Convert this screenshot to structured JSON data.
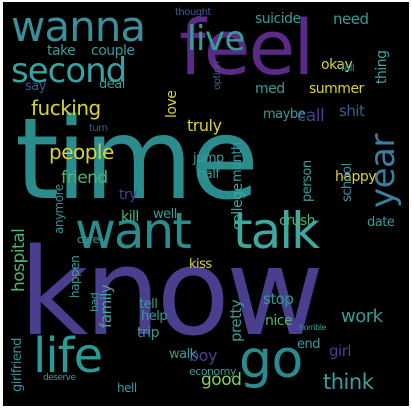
{
  "words": {
    "time": "time",
    "know": "know",
    "feel": "feel",
    "want": "want",
    "talk": "talk",
    "wanna": "wanna",
    "second": "second",
    "live": "live",
    "life": "life",
    "go": "go",
    "year": "year",
    "people": "people",
    "fucking": "fucking",
    "friend": "friend",
    "think": "think",
    "hospital": "hospital",
    "girlfriend": "girlfriend",
    "family": "family",
    "good": "good",
    "boy": "boy",
    "pretty": "pretty",
    "work": "work",
    "happy": "happy",
    "kill": "kill",
    "college": "college",
    "month": "month",
    "school": "school",
    "person": "person",
    "crush": "crush",
    "date": "date",
    "stop": "stop",
    "nice": "nice",
    "girl": "girl",
    "truly": "truly",
    "love": "love",
    "call": "call",
    "shit": "shit",
    "summer": "summer",
    "okay": "okay",
    "thing": "thing",
    "need": "need",
    "suicide": "suicide",
    "couple": "couple",
    "take": "take",
    "say": "say",
    "deal": "deal",
    "med": "med",
    "maybe": "maybe",
    "jump": "jump",
    "half": "half",
    "try": "try",
    "well": "well",
    "care": "care",
    "anymore": "anymore",
    "happen": "happen",
    "kiss": "kiss",
    "tell": "tell",
    "help": "help",
    "bad": "bad",
    "trip": "trip",
    "walk": "walk",
    "end": "end",
    "economy": "economy",
    "hell": "hell",
    "thought": "thought",
    "option": "option",
    "fall": "fall",
    "turn": "turn",
    "horrible": "horrible",
    "deserve": "deserve"
  },
  "colors": {
    "background": "#000000",
    "purple": "#472d7b",
    "violet": "#5b2a86",
    "teal": "#2a8c8c",
    "blue": "#3a5d8f",
    "green": "#4fb56f",
    "yellow": "#d8d23a",
    "light_green": "#7fcf5e"
  }
}
